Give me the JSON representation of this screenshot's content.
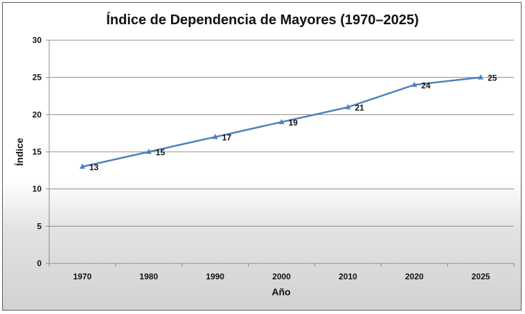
{
  "chart_data": {
    "type": "line",
    "title": "Índice de Dependencia de Mayores (1970–2025)",
    "xlabel": "Año",
    "ylabel": "Índice",
    "categories": [
      "1970",
      "1980",
      "1990",
      "2000",
      "2010",
      "2020",
      "2025"
    ],
    "series": [
      {
        "values": [
          13,
          15,
          17,
          19,
          21,
          24,
          25
        ],
        "color": "#4f81bd",
        "marker": "triangle"
      }
    ],
    "ylim": [
      0,
      30
    ],
    "yticks": [
      0,
      5,
      10,
      15,
      20,
      25,
      30
    ],
    "grid": true,
    "legend": "none",
    "data_labels": true
  }
}
